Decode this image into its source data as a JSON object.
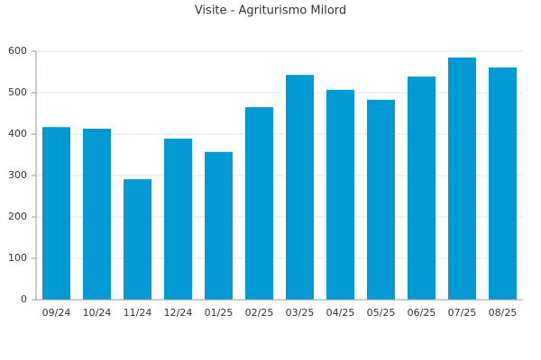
{
  "chart_data": {
    "type": "bar",
    "title": "Visite - Agriturismo Milord",
    "categories": [
      "09/24",
      "10/24",
      "11/24",
      "12/24",
      "01/25",
      "02/25",
      "03/25",
      "04/25",
      "05/25",
      "06/25",
      "07/25",
      "08/25"
    ],
    "values": [
      417,
      413,
      291,
      389,
      357,
      465,
      543,
      507,
      483,
      539,
      585,
      561
    ],
    "color": "#0399d4",
    "ylim": [
      0,
      600
    ],
    "yticks": [
      0,
      100,
      200,
      300,
      400,
      500,
      600
    ],
    "grid": true
  }
}
